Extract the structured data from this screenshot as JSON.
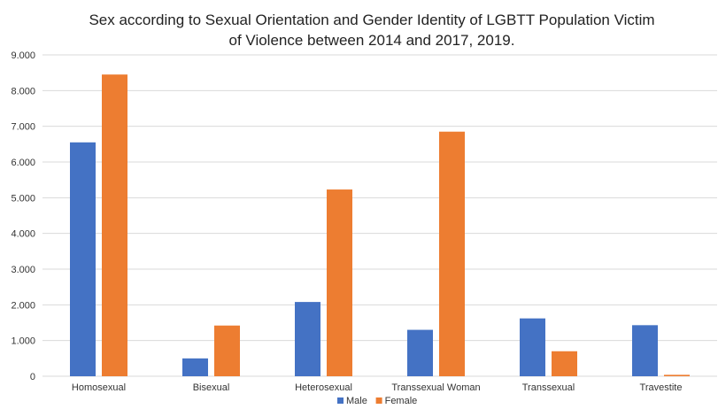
{
  "chart_data": {
    "type": "bar",
    "title": [
      "Sex according to Sexual Orientation and Gender Identity of LGBTT Population Victim",
      "of Violence between 2014 and 2017, 2019."
    ],
    "xlabel": "",
    "ylabel": "",
    "categories": [
      "Homosexual",
      "Bisexual",
      "Heterosexual",
      "Transsexual Woman",
      "Transsexual",
      "Travestite"
    ],
    "series": [
      {
        "name": "Male",
        "color": "#4472C4",
        "values": [
          6550,
          500,
          2080,
          1300,
          1620,
          1430
        ]
      },
      {
        "name": "Female",
        "color": "#ED7D31",
        "values": [
          8450,
          1420,
          5230,
          6850,
          700,
          40
        ]
      }
    ],
    "yticks": [
      0,
      1000,
      2000,
      3000,
      4000,
      5000,
      6000,
      7000,
      8000,
      9000
    ],
    "ytick_labels": [
      "0",
      "1.000",
      "2.000",
      "3.000",
      "4.000",
      "5.000",
      "6.000",
      "7.000",
      "8.000",
      "9.000"
    ],
    "ylim": [
      0,
      9000
    ],
    "grid": true,
    "grid_color": "#D9D9D9",
    "legend": {
      "position": "bottom",
      "entries": [
        "Male",
        "Female"
      ]
    }
  }
}
